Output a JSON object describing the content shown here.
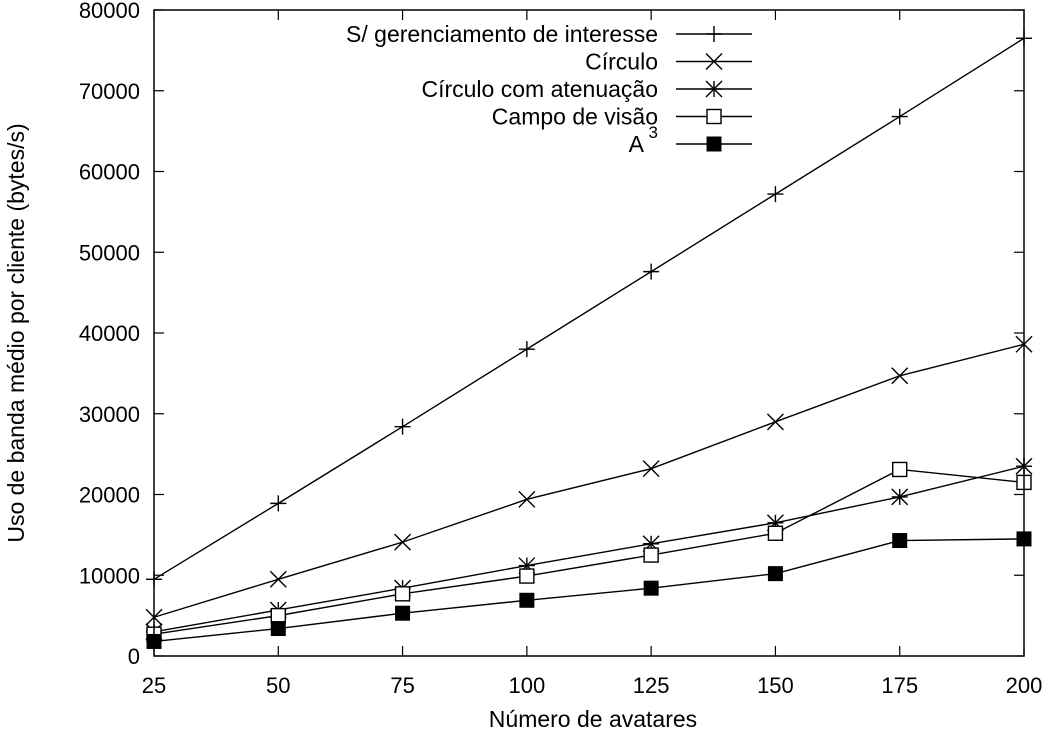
{
  "chart_data": {
    "type": "line",
    "title": "",
    "xlabel": "Número de avatares",
    "ylabel": "Uso de banda médio por cliente (bytes/s)",
    "xlim": [
      25,
      200
    ],
    "ylim": [
      0,
      80000
    ],
    "xticks": [
      25,
      50,
      75,
      100,
      125,
      150,
      175,
      200
    ],
    "yticks": [
      0,
      10000,
      20000,
      30000,
      40000,
      50000,
      60000,
      70000,
      80000
    ],
    "grid": false,
    "legend_position": "top-right",
    "x": [
      25,
      50,
      75,
      100,
      125,
      150,
      175,
      200
    ],
    "series": [
      {
        "name": "S/ gerenciamento de interesse",
        "marker": "plus",
        "values": [
          9500,
          18900,
          28400,
          38000,
          47600,
          57200,
          66800,
          76500
        ]
      },
      {
        "name": "Círculo",
        "marker": "cross",
        "values": [
          4800,
          9500,
          14100,
          19400,
          23200,
          29000,
          34700,
          38600
        ]
      },
      {
        "name": "Círculo com atenuação",
        "marker": "star",
        "values": [
          3000,
          5700,
          8400,
          11200,
          13900,
          16500,
          19700,
          23500
        ]
      },
      {
        "name": "Campo de visão",
        "marker": "open-square",
        "values": [
          2700,
          5000,
          7700,
          9900,
          12500,
          15200,
          23100,
          21500
        ]
      },
      {
        "name": "A",
        "name_superscript": "3",
        "marker": "filled-square",
        "values": [
          1800,
          3400,
          5300,
          6900,
          8400,
          10200,
          14300,
          14500
        ]
      }
    ]
  }
}
